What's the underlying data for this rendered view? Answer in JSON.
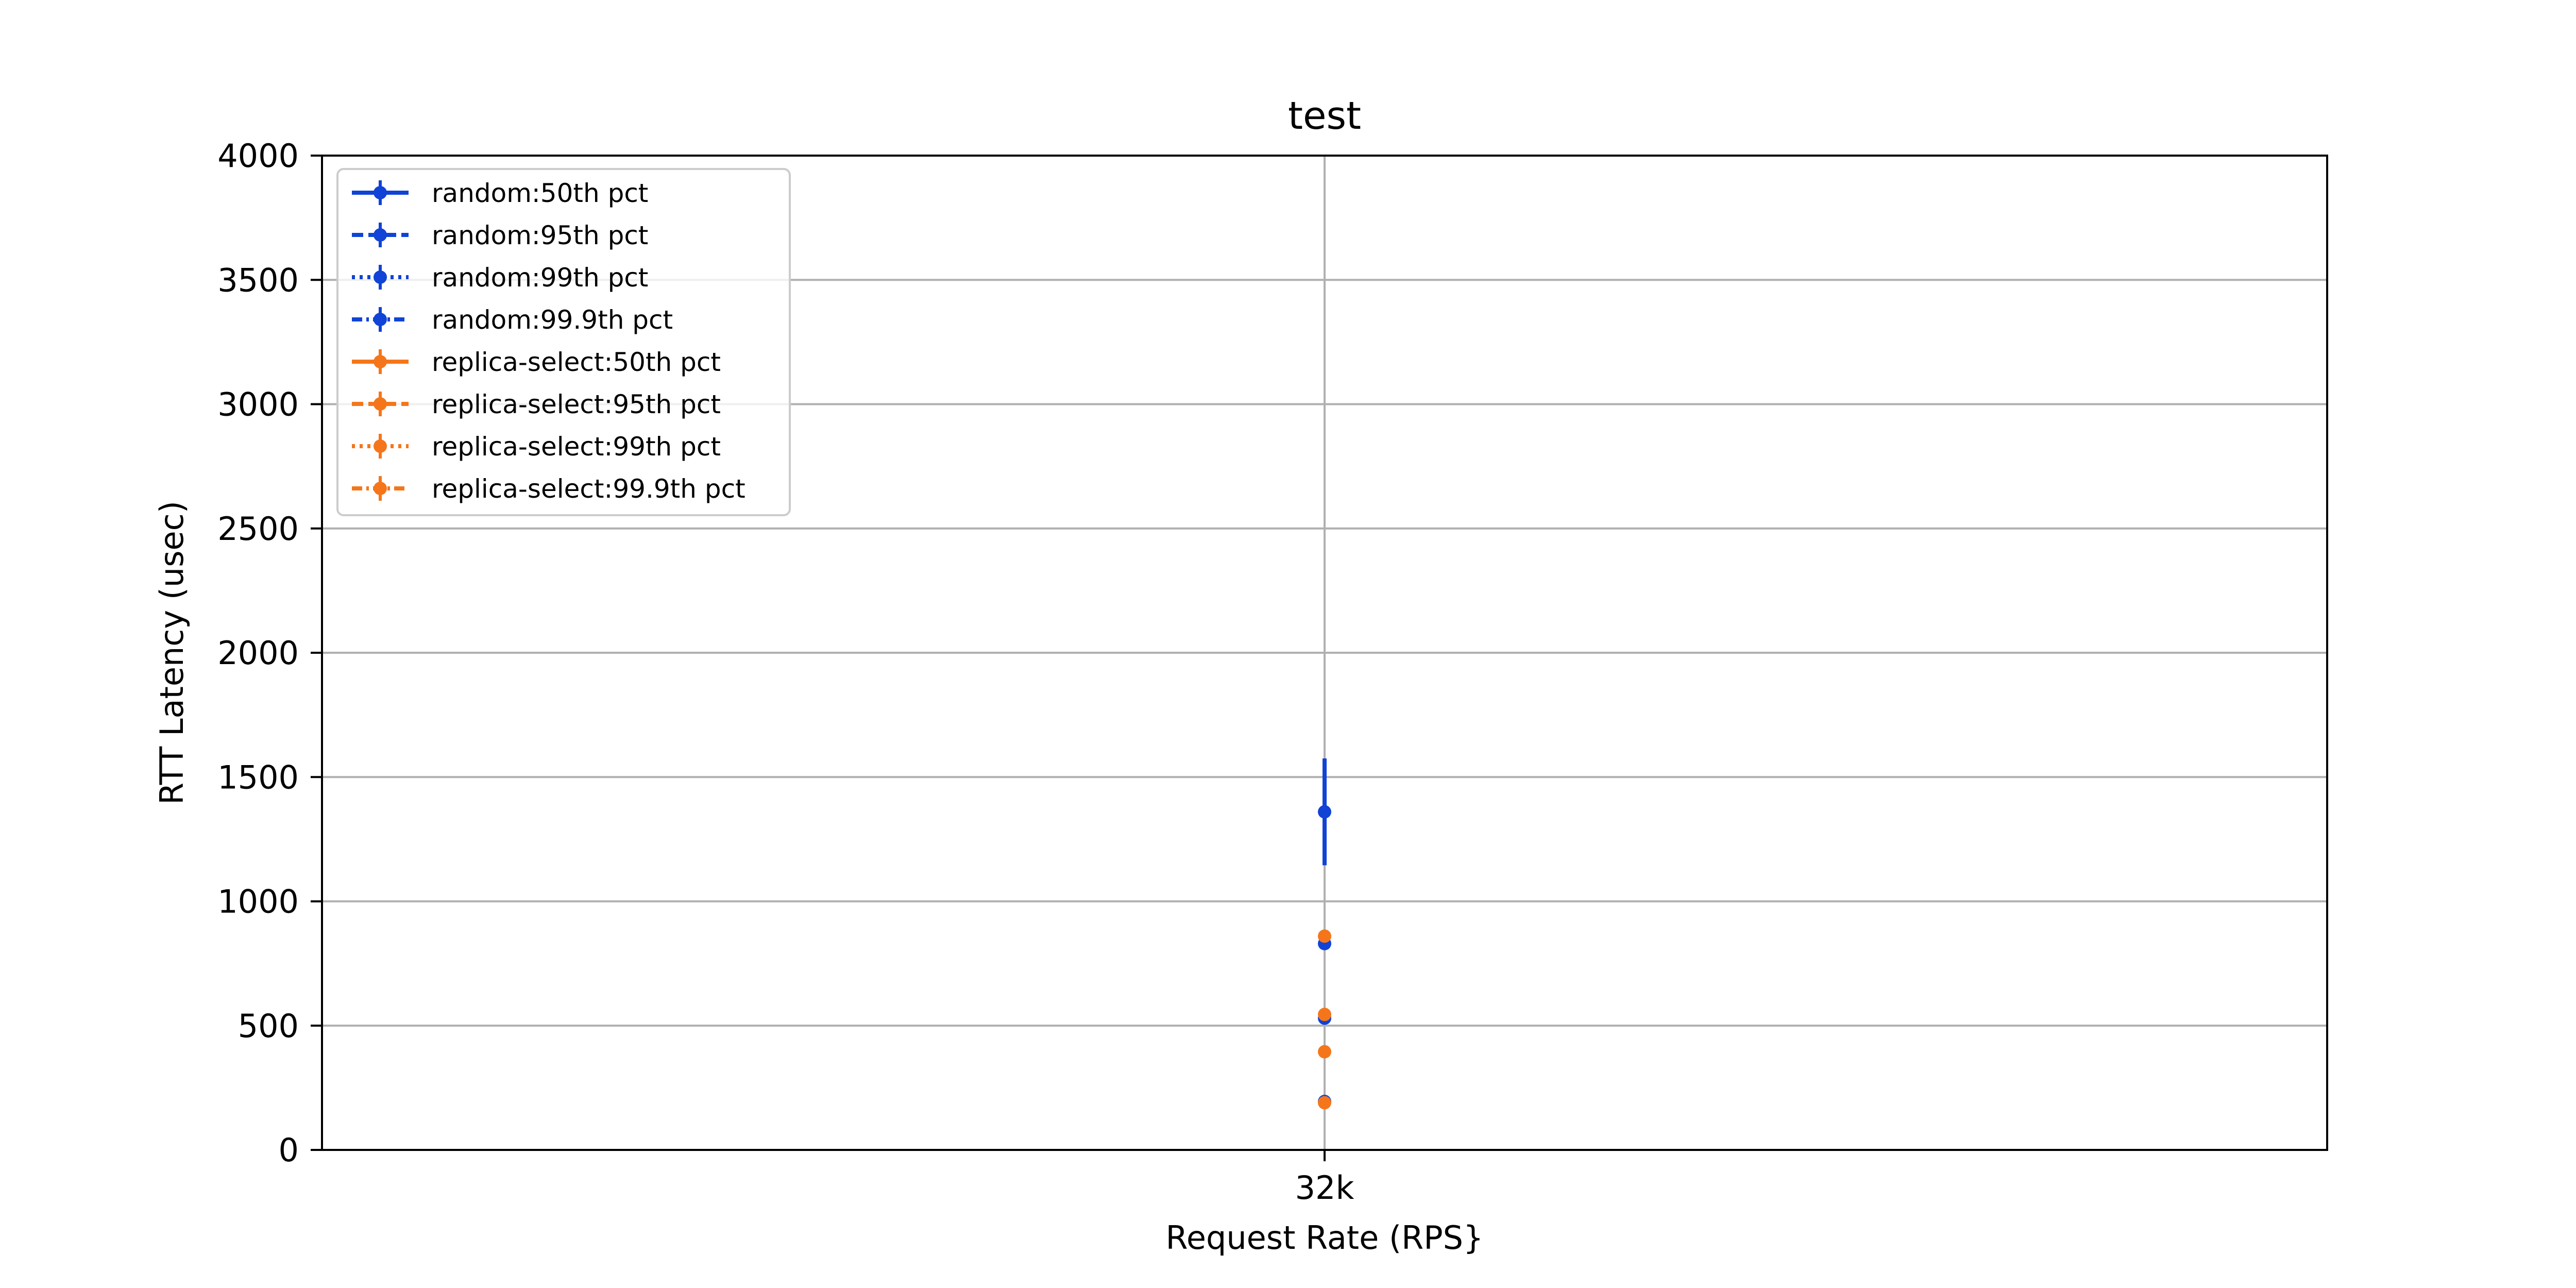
{
  "chart_data": {
    "type": "scatter",
    "title": "test",
    "xlabel": "Request Rate (RPS}",
    "ylabel": "RTT Latency (usec)",
    "categories": [
      "32k"
    ],
    "ylim": [
      0,
      4000
    ],
    "yticks": [
      0,
      500,
      1000,
      1500,
      2000,
      2500,
      3000,
      3500,
      4000
    ],
    "grid": true,
    "legend_position": "top-left",
    "series": [
      {
        "name": "random:50th pct",
        "color": "#1043d6",
        "linestyle": "solid",
        "values": [
          195
        ],
        "yerr": [
          10
        ]
      },
      {
        "name": "random:95th pct",
        "color": "#1043d6",
        "linestyle": "dashed",
        "values": [
          530
        ],
        "yerr": [
          15
        ]
      },
      {
        "name": "random:99th pct",
        "color": "#1043d6",
        "linestyle": "dotted",
        "values": [
          830
        ],
        "yerr": [
          20
        ]
      },
      {
        "name": "random:99.9th pct",
        "color": "#1043d6",
        "linestyle": "dashdot",
        "values": [
          1360
        ],
        "yerr": [
          215
        ]
      },
      {
        "name": "replica-select:50th pct",
        "color": "#f5761a",
        "linestyle": "solid",
        "values": [
          190
        ],
        "yerr": [
          10
        ]
      },
      {
        "name": "replica-select:95th pct",
        "color": "#f5761a",
        "linestyle": "dashed",
        "values": [
          395
        ],
        "yerr": [
          15
        ]
      },
      {
        "name": "replica-select:99th pct",
        "color": "#f5761a",
        "linestyle": "dotted",
        "values": [
          545
        ],
        "yerr": [
          15
        ]
      },
      {
        "name": "replica-select:99.9th pct",
        "color": "#f5761a",
        "linestyle": "dashdot",
        "values": [
          860
        ],
        "yerr": [
          20
        ]
      }
    ]
  }
}
